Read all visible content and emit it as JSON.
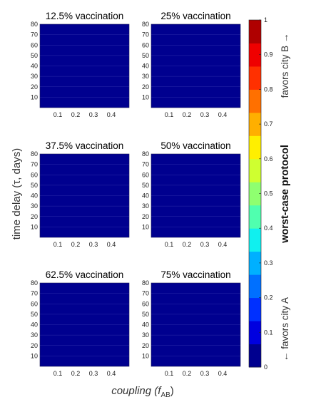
{
  "chart_data": {
    "type": "heatmap",
    "xlabel": "coupling (f",
    "xlabel_sub": "AB",
    "xlabel_close": ")",
    "ylabel": "time delay (τ, days)",
    "x_ticks": [
      "0.1",
      "0.2",
      "0.3",
      "0.4"
    ],
    "y_ticks": [
      "10",
      "20",
      "30",
      "40",
      "50",
      "60",
      "70",
      "80"
    ],
    "xlim": [
      0,
      0.5
    ],
    "ylim": [
      0,
      80
    ],
    "panels": [
      {
        "title": "12.5% vaccination",
        "value": 0
      },
      {
        "title": "25% vaccination",
        "value": 0
      },
      {
        "title": "37.5% vaccination",
        "value": 0
      },
      {
        "title": "50% vaccination",
        "value": 0
      },
      {
        "title": "62.5% vaccination",
        "value": 0
      },
      {
        "title": "75% vaccination",
        "value": 0
      }
    ],
    "colorbar": {
      "label": "worst-case protocol",
      "low_label": "← favors city A",
      "high_label": "favors city B →",
      "ticks": [
        "0",
        "0.1",
        "0.2",
        "0.3",
        "0.4",
        "0.5",
        "0.6",
        "0.7",
        "0.8",
        "0.9",
        "1"
      ],
      "colors": [
        "#00008F",
        "#0000DF",
        "#0030FF",
        "#0070FF",
        "#00B0FF",
        "#10F0EF",
        "#50FFAF",
        "#8FFF70",
        "#CFFF30",
        "#FFEF00",
        "#FFAF00",
        "#FF7000",
        "#FF3000",
        "#EF0000",
        "#AF0000"
      ]
    }
  }
}
